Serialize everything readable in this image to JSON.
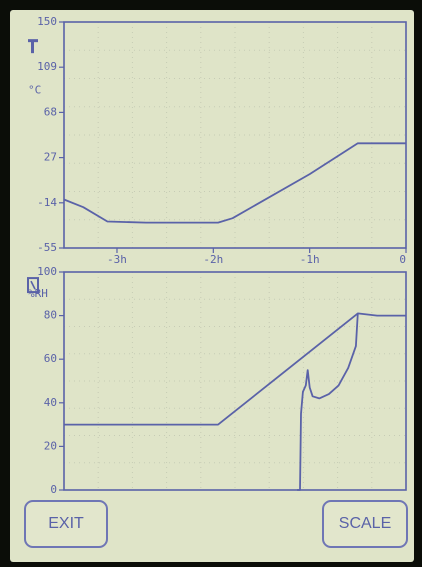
{
  "buttons": {
    "exit": "EXIT",
    "scale": "SCALE"
  },
  "colors": {
    "screen": "#dfe4c8",
    "ink": "#5a62a8",
    "grid": "#c6cbb5"
  },
  "chart_data": [
    {
      "type": "line",
      "ylabel": "°C",
      "icon": "thermometer-icon",
      "xlim": [
        -3.55,
        0
      ],
      "ylim": [
        -55,
        150
      ],
      "yticks": [
        150,
        109,
        68,
        27,
        -14,
        -55
      ],
      "ytick_labels": [
        "150",
        "109",
        "68",
        "27",
        "-14",
        "-55"
      ],
      "xticks": [
        -3,
        -2,
        -1,
        0
      ],
      "xtick_labels": [
        "-3h",
        "-2h",
        "-1h",
        "0"
      ],
      "series": [
        {
          "x": [
            -3.55,
            -3.35,
            -3.1,
            -2.7,
            -2.4,
            -1.95,
            -1.8,
            -1.0,
            -0.5,
            0
          ],
          "y": [
            -11,
            -18,
            -31,
            -32,
            -32,
            -32,
            -28,
            12,
            40,
            40
          ]
        }
      ]
    },
    {
      "type": "line",
      "ylabel": "%RH",
      "icon": "humidity-icon",
      "xlim": [
        -3.55,
        0
      ],
      "ylim": [
        0,
        100
      ],
      "yticks": [
        0,
        20,
        40,
        60,
        80,
        100
      ],
      "ytick_labels": [
        "0",
        "20",
        "40",
        "60",
        "80",
        "100"
      ],
      "series": [
        {
          "x": [
            -3.55,
            -1.95,
            -0.5,
            -0.3,
            0
          ],
          "y": [
            30,
            30,
            81,
            80,
            80
          ]
        },
        {
          "x": [
            -1.13,
            -1.1,
            -1.09,
            -1.07,
            -1.04,
            -1.02,
            -1.0,
            -0.97,
            -0.9,
            -0.8,
            -0.7,
            -0.6,
            -0.52,
            -0.5
          ],
          "y": [
            0,
            0,
            35,
            45,
            48,
            55,
            47,
            43,
            42,
            44,
            48,
            56,
            66,
            81
          ]
        }
      ]
    }
  ]
}
